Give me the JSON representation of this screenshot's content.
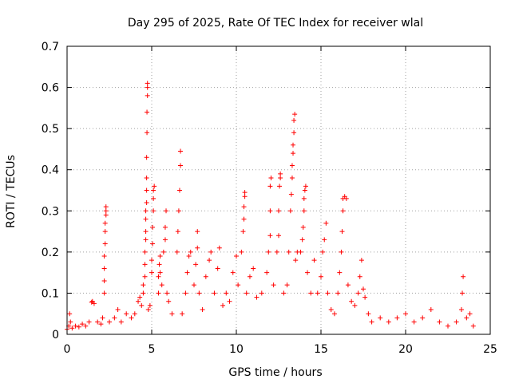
{
  "chart_data": {
    "type": "scatter",
    "title": "Day 295 of 2025, Rate Of TEC Index for receiver wlal",
    "xlabel": "GPS time / hours",
    "ylabel": "ROTI / TECUs",
    "xlim": [
      0,
      25
    ],
    "ylim": [
      0,
      0.7
    ],
    "x_ticks": [
      "0",
      "5",
      "10",
      "15",
      "20",
      "25"
    ],
    "y_ticks": [
      "0",
      "0.1",
      "0.2",
      "0.3",
      "0.4",
      "0.5",
      "0.6",
      "0.7"
    ],
    "grid": true,
    "marker": "+",
    "color": "#ff0000",
    "points": [
      [
        0.0,
        0.012
      ],
      [
        0.1,
        0.02
      ],
      [
        0.15,
        0.05
      ],
      [
        0.2,
        0.03
      ],
      [
        0.3,
        0.015
      ],
      [
        0.5,
        0.02
      ],
      [
        0.7,
        0.018
      ],
      [
        0.9,
        0.025
      ],
      [
        1.1,
        0.02
      ],
      [
        1.3,
        0.03
      ],
      [
        1.45,
        0.078
      ],
      [
        1.5,
        0.08
      ],
      [
        1.6,
        0.075
      ],
      [
        1.8,
        0.03
      ],
      [
        2.0,
        0.025
      ],
      [
        2.1,
        0.04
      ],
      [
        2.2,
        0.1
      ],
      [
        2.2,
        0.13
      ],
      [
        2.2,
        0.16
      ],
      [
        2.2,
        0.19
      ],
      [
        2.25,
        0.22
      ],
      [
        2.25,
        0.25
      ],
      [
        2.25,
        0.27
      ],
      [
        2.3,
        0.29
      ],
      [
        2.3,
        0.3
      ],
      [
        2.3,
        0.31
      ],
      [
        2.5,
        0.03
      ],
      [
        2.8,
        0.04
      ],
      [
        3.0,
        0.06
      ],
      [
        3.2,
        0.03
      ],
      [
        3.5,
        0.05
      ],
      [
        3.8,
        0.04
      ],
      [
        4.0,
        0.05
      ],
      [
        4.2,
        0.08
      ],
      [
        4.3,
        0.09
      ],
      [
        4.4,
        0.07
      ],
      [
        4.5,
        0.1
      ],
      [
        4.5,
        0.12
      ],
      [
        4.6,
        0.14
      ],
      [
        4.6,
        0.17
      ],
      [
        4.6,
        0.2
      ],
      [
        4.65,
        0.23
      ],
      [
        4.65,
        0.25
      ],
      [
        4.65,
        0.28
      ],
      [
        4.65,
        0.3
      ],
      [
        4.7,
        0.32
      ],
      [
        4.7,
        0.35
      ],
      [
        4.7,
        0.38
      ],
      [
        4.7,
        0.43
      ],
      [
        4.72,
        0.49
      ],
      [
        4.72,
        0.54
      ],
      [
        4.75,
        0.58
      ],
      [
        4.75,
        0.6
      ],
      [
        4.75,
        0.61
      ],
      [
        4.8,
        0.06
      ],
      [
        4.9,
        0.07
      ],
      [
        5.0,
        0.15
      ],
      [
        5.0,
        0.18
      ],
      [
        5.05,
        0.22
      ],
      [
        5.05,
        0.26
      ],
      [
        5.1,
        0.3
      ],
      [
        5.1,
        0.33
      ],
      [
        5.1,
        0.35
      ],
      [
        5.15,
        0.36
      ],
      [
        5.4,
        0.1
      ],
      [
        5.4,
        0.14
      ],
      [
        5.45,
        0.17
      ],
      [
        5.5,
        0.19
      ],
      [
        5.5,
        0.15
      ],
      [
        5.6,
        0.12
      ],
      [
        5.7,
        0.2
      ],
      [
        5.8,
        0.23
      ],
      [
        5.8,
        0.26
      ],
      [
        5.85,
        0.3
      ],
      [
        5.9,
        0.1
      ],
      [
        6.0,
        0.08
      ],
      [
        6.2,
        0.05
      ],
      [
        6.5,
        0.2
      ],
      [
        6.55,
        0.25
      ],
      [
        6.6,
        0.3
      ],
      [
        6.65,
        0.35
      ],
      [
        6.7,
        0.41
      ],
      [
        6.7,
        0.445
      ],
      [
        6.8,
        0.05
      ],
      [
        7.0,
        0.1
      ],
      [
        7.1,
        0.15
      ],
      [
        7.2,
        0.19
      ],
      [
        7.3,
        0.2
      ],
      [
        7.5,
        0.12
      ],
      [
        7.6,
        0.17
      ],
      [
        7.7,
        0.21
      ],
      [
        7.7,
        0.25
      ],
      [
        7.8,
        0.1
      ],
      [
        8.0,
        0.06
      ],
      [
        8.2,
        0.14
      ],
      [
        8.4,
        0.18
      ],
      [
        8.5,
        0.2
      ],
      [
        8.7,
        0.1
      ],
      [
        8.9,
        0.16
      ],
      [
        9.0,
        0.21
      ],
      [
        9.2,
        0.07
      ],
      [
        9.4,
        0.1
      ],
      [
        9.6,
        0.08
      ],
      [
        9.8,
        0.15
      ],
      [
        10.0,
        0.19
      ],
      [
        10.1,
        0.12
      ],
      [
        10.3,
        0.2
      ],
      [
        10.4,
        0.25
      ],
      [
        10.45,
        0.28
      ],
      [
        10.45,
        0.31
      ],
      [
        10.5,
        0.335
      ],
      [
        10.5,
        0.345
      ],
      [
        10.6,
        0.1
      ],
      [
        10.8,
        0.14
      ],
      [
        11.0,
        0.16
      ],
      [
        11.2,
        0.09
      ],
      [
        11.5,
        0.1
      ],
      [
        11.8,
        0.15
      ],
      [
        11.9,
        0.2
      ],
      [
        12.0,
        0.24
      ],
      [
        12.0,
        0.3
      ],
      [
        12.0,
        0.36
      ],
      [
        12.05,
        0.38
      ],
      [
        12.2,
        0.12
      ],
      [
        12.4,
        0.2
      ],
      [
        12.5,
        0.24
      ],
      [
        12.5,
        0.3
      ],
      [
        12.55,
        0.36
      ],
      [
        12.6,
        0.38
      ],
      [
        12.6,
        0.39
      ],
      [
        12.8,
        0.1
      ],
      [
        13.0,
        0.12
      ],
      [
        13.1,
        0.2
      ],
      [
        13.2,
        0.3
      ],
      [
        13.25,
        0.34
      ],
      [
        13.3,
        0.38
      ],
      [
        13.3,
        0.41
      ],
      [
        13.35,
        0.44
      ],
      [
        13.35,
        0.46
      ],
      [
        13.4,
        0.49
      ],
      [
        13.4,
        0.52
      ],
      [
        13.45,
        0.535
      ],
      [
        13.5,
        0.18
      ],
      [
        13.6,
        0.2
      ],
      [
        13.8,
        0.2
      ],
      [
        13.9,
        0.23
      ],
      [
        13.95,
        0.26
      ],
      [
        14.0,
        0.3
      ],
      [
        14.0,
        0.33
      ],
      [
        14.05,
        0.35
      ],
      [
        14.1,
        0.36
      ],
      [
        14.2,
        0.15
      ],
      [
        14.4,
        0.1
      ],
      [
        14.6,
        0.18
      ],
      [
        14.8,
        0.1
      ],
      [
        15.0,
        0.14
      ],
      [
        15.1,
        0.2
      ],
      [
        15.2,
        0.23
      ],
      [
        15.3,
        0.27
      ],
      [
        15.4,
        0.1
      ],
      [
        15.6,
        0.06
      ],
      [
        15.8,
        0.05
      ],
      [
        16.0,
        0.1
      ],
      [
        16.1,
        0.15
      ],
      [
        16.2,
        0.2
      ],
      [
        16.25,
        0.25
      ],
      [
        16.3,
        0.3
      ],
      [
        16.3,
        0.33
      ],
      [
        16.4,
        0.335
      ],
      [
        16.5,
        0.33
      ],
      [
        16.6,
        0.12
      ],
      [
        16.8,
        0.08
      ],
      [
        17.0,
        0.07
      ],
      [
        17.2,
        0.1
      ],
      [
        17.3,
        0.14
      ],
      [
        17.4,
        0.18
      ],
      [
        17.5,
        0.11
      ],
      [
        17.6,
        0.09
      ],
      [
        17.8,
        0.05
      ],
      [
        18.0,
        0.03
      ],
      [
        18.5,
        0.04
      ],
      [
        19.0,
        0.03
      ],
      [
        19.5,
        0.04
      ],
      [
        20.0,
        0.05
      ],
      [
        20.5,
        0.03
      ],
      [
        21.0,
        0.04
      ],
      [
        21.5,
        0.06
      ],
      [
        22.0,
        0.03
      ],
      [
        22.5,
        0.02
      ],
      [
        23.0,
        0.03
      ],
      [
        23.3,
        0.06
      ],
      [
        23.35,
        0.1
      ],
      [
        23.4,
        0.14
      ],
      [
        23.6,
        0.04
      ],
      [
        23.8,
        0.05
      ],
      [
        24.0,
        0.02
      ]
    ]
  }
}
